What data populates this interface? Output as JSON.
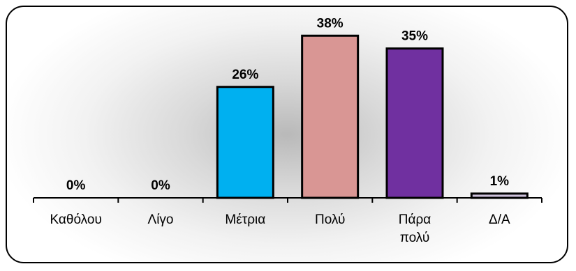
{
  "chart_data": {
    "type": "bar",
    "categories": [
      "Καθόλου",
      "Λίγο",
      "Μέτρια",
      "Πολύ",
      "Πάρα πολύ",
      "Δ/Α"
    ],
    "category_lines": [
      [
        "Καθόλου"
      ],
      [
        "Λίγο"
      ],
      [
        "Μέτρια"
      ],
      [
        "Πολύ"
      ],
      [
        "Πάρα",
        "πολύ"
      ],
      [
        "Δ/Α"
      ]
    ],
    "values": [
      0,
      0,
      26,
      38,
      35,
      1
    ],
    "data_labels": [
      "0%",
      "0%",
      "26%",
      "38%",
      "35%",
      "1%"
    ],
    "bar_colors": [
      "#00B0F0",
      "#00B0F0",
      "#00B0F0",
      "#D99694",
      "#7030A0",
      "#CCC0DA"
    ],
    "ylim": [
      0,
      40
    ],
    "unit": "%",
    "grid": false,
    "legend": "none",
    "title": "",
    "xlabel": "",
    "ylabel": ""
  }
}
